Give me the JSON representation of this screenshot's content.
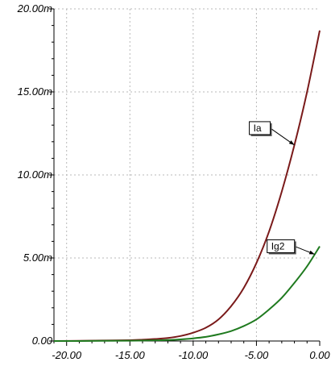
{
  "chart_data": {
    "type": "line",
    "title": "",
    "xlabel": "",
    "ylabel": "",
    "xlim": [
      -21,
      0
    ],
    "ylim": [
      0,
      0.02
    ],
    "grid": true,
    "x_ticks": [
      -20,
      -15,
      -10,
      -5,
      0
    ],
    "x_tick_labels": [
      "-20.00",
      "-15.00",
      "-10.00",
      "-5.00",
      "0.00"
    ],
    "y_ticks": [
      0,
      0.005,
      0.01,
      0.015,
      0.02
    ],
    "y_tick_labels": [
      "0.00",
      "5.00m",
      "10.00m",
      "15.00m",
      "20.00m"
    ],
    "series": [
      {
        "name": "Ia",
        "color": "#7a1a1a",
        "x": [
          -21,
          -19,
          -17,
          -15,
          -14,
          -13,
          -12,
          -11,
          -10,
          -9,
          -8,
          -7,
          -6,
          -5,
          -4,
          -3,
          -2,
          -1,
          0
        ],
        "y": [
          0.0,
          1e-05,
          3e-05,
          5e-05,
          8e-05,
          0.00012,
          0.00018,
          0.0003,
          0.0005,
          0.0008,
          0.0013,
          0.0021,
          0.0032,
          0.0047,
          0.0066,
          0.009,
          0.0118,
          0.015,
          0.0187
        ]
      },
      {
        "name": "Ig2",
        "color": "#1f7a1f",
        "x": [
          -21,
          -19,
          -17,
          -15,
          -13,
          -12,
          -11,
          -10,
          -9,
          -8,
          -7,
          -6,
          -5,
          -4,
          -3,
          -2,
          -1,
          0
        ],
        "y": [
          0.0,
          0.0,
          1e-05,
          2e-05,
          4e-05,
          6e-05,
          0.0001,
          0.00016,
          0.00025,
          0.0004,
          0.0006,
          0.0009,
          0.0013,
          0.0019,
          0.0026,
          0.0035,
          0.0045,
          0.0057
        ]
      }
    ],
    "annotations": [
      {
        "text": "Ia",
        "series": "Ia",
        "at_x": -2
      },
      {
        "text": "Ig2",
        "series": "Ig2",
        "at_x": -0.4
      }
    ]
  }
}
